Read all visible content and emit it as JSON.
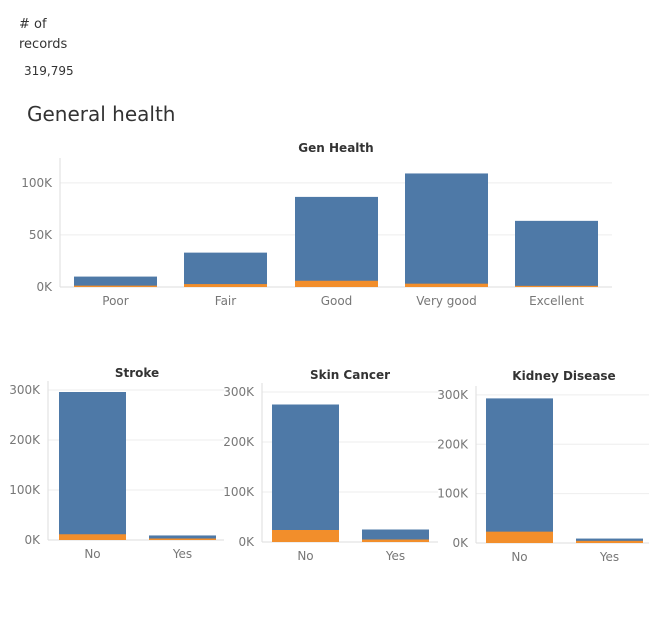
{
  "kpi": {
    "label": "# of records",
    "value": "319,795"
  },
  "section_title": "General health",
  "colors": {
    "total": "#4e79a7",
    "yes": "#f28e2b",
    "grid": "#eeeeee",
    "axis": "#dddddd"
  },
  "chart_data": [
    {
      "id": "gen-health",
      "type": "bar",
      "stacked": true,
      "title": "Gen Health",
      "xlabel": "",
      "ylabel": "",
      "categories": [
        "Poor",
        "Fair",
        "Good",
        "Very good",
        "Excellent"
      ],
      "series": [
        {
          "values": [
            10000,
            33000,
            86500,
            109000,
            63500
          ]
        },
        {
          "values": [
            1300,
            2800,
            6000,
            3200,
            1100
          ]
        }
      ],
      "ylim": [
        0,
        120000
      ],
      "yticks": [
        0,
        50000,
        100000
      ],
      "ytick_labels": [
        "0K",
        "50K",
        "100K"
      ],
      "grid": true
    },
    {
      "id": "stroke",
      "type": "bar",
      "stacked": true,
      "title": "Stroke",
      "xlabel": "",
      "ylabel": "",
      "categories": [
        "No",
        "Yes"
      ],
      "series": [
        {
          "values": [
            296000,
            9100
          ]
        },
        {
          "values": [
            11500,
            3000
          ]
        }
      ],
      "ylim": [
        0,
        310000
      ],
      "yticks": [
        0,
        100000,
        200000,
        300000
      ],
      "ytick_labels": [
        "0K",
        "100K",
        "200K",
        "300K"
      ],
      "grid": true
    },
    {
      "id": "skin-cancer",
      "type": "bar",
      "stacked": true,
      "title": "Skin Cancer",
      "xlabel": "",
      "ylabel": "",
      "categories": [
        "No",
        "Yes"
      ],
      "series": [
        {
          "values": [
            275000,
            25000
          ]
        },
        {
          "values": [
            24000,
            5000
          ]
        }
      ],
      "ylim": [
        0,
        310000
      ],
      "yticks": [
        0,
        100000,
        200000,
        300000
      ],
      "ytick_labels": [
        "0K",
        "100K",
        "200K",
        "300K"
      ],
      "grid": true
    },
    {
      "id": "kidney-disease",
      "type": "bar",
      "stacked": true,
      "title": "Kidney Disease",
      "xlabel": "",
      "ylabel": "",
      "categories": [
        "No",
        "Yes"
      ],
      "series": [
        {
          "values": [
            293000,
            9000
          ]
        },
        {
          "values": [
            23000,
            4400
          ]
        }
      ],
      "ylim": [
        0,
        310000
      ],
      "yticks": [
        0,
        100000,
        200000,
        300000
      ],
      "ytick_labels": [
        "0K",
        "100K",
        "200K",
        "300K"
      ],
      "grid": true
    }
  ]
}
